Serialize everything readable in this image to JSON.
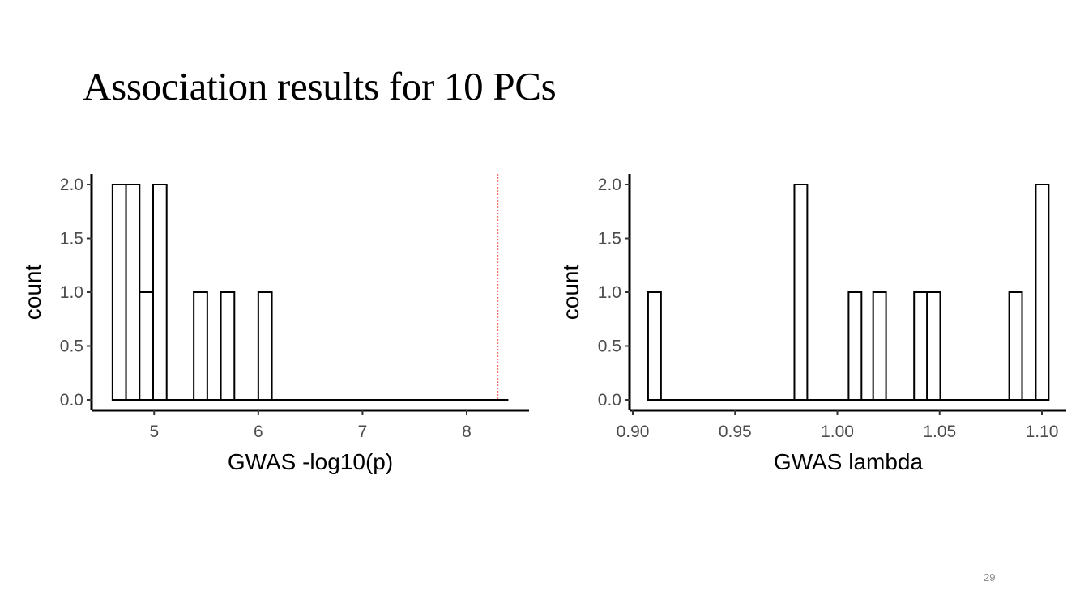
{
  "slide": {
    "title": "Association results for 10 PCs",
    "page_number": "29"
  },
  "chart_data": [
    {
      "type": "histogram",
      "xlabel": "GWAS -log10(p)",
      "ylabel": "count",
      "xlim": [
        4.5,
        8.4
      ],
      "ylim": [
        0,
        2
      ],
      "x_ticks": [
        "5",
        "6",
        "7",
        "8"
      ],
      "y_ticks": [
        "0.0",
        "0.5",
        "1.0",
        "1.5",
        "2.0"
      ],
      "bin_width": 0.13,
      "bins": [
        {
          "x_start": 4.6,
          "count": 2
        },
        {
          "x_start": 4.73,
          "count": 2
        },
        {
          "x_start": 4.86,
          "count": 1
        },
        {
          "x_start": 4.99,
          "count": 2
        },
        {
          "x_start": 5.25,
          "count": 0
        },
        {
          "x_start": 5.38,
          "count": 1
        },
        {
          "x_start": 5.51,
          "count": 0
        },
        {
          "x_start": 5.64,
          "count": 1
        },
        {
          "x_start": 5.77,
          "count": 0
        },
        {
          "x_start": 5.9,
          "count": 0
        },
        {
          "x_start": 6.0,
          "count": 1
        }
      ],
      "baseline_end": 8.4,
      "reference_line": {
        "x": 8.3,
        "style": "dotted",
        "color": "#f8766d"
      },
      "bar_fill": "#ffffff",
      "bar_stroke": "#000000"
    },
    {
      "type": "histogram",
      "xlabel": "GWAS lambda",
      "ylabel": "count",
      "xlim": [
        0.9,
        1.11
      ],
      "ylim": [
        0,
        2
      ],
      "x_ticks": [
        "0.90",
        "0.95",
        "1.00",
        "1.05",
        "1.10"
      ],
      "y_ticks": [
        "0.0",
        "0.5",
        "1.0",
        "1.5",
        "2.0"
      ],
      "bin_width": 0.0063,
      "bins": [
        {
          "x_start": 0.9075,
          "count": 1
        },
        {
          "x_start": 0.979,
          "count": 2
        },
        {
          "x_start": 1.0055,
          "count": 1
        },
        {
          "x_start": 1.0175,
          "count": 1
        },
        {
          "x_start": 1.0375,
          "count": 1
        },
        {
          "x_start": 1.044,
          "count": 1
        },
        {
          "x_start": 1.084,
          "count": 1
        },
        {
          "x_start": 1.097,
          "count": 2
        }
      ],
      "baseline_end": 1.1035,
      "bar_fill": "#ffffff",
      "bar_stroke": "#000000"
    }
  ]
}
